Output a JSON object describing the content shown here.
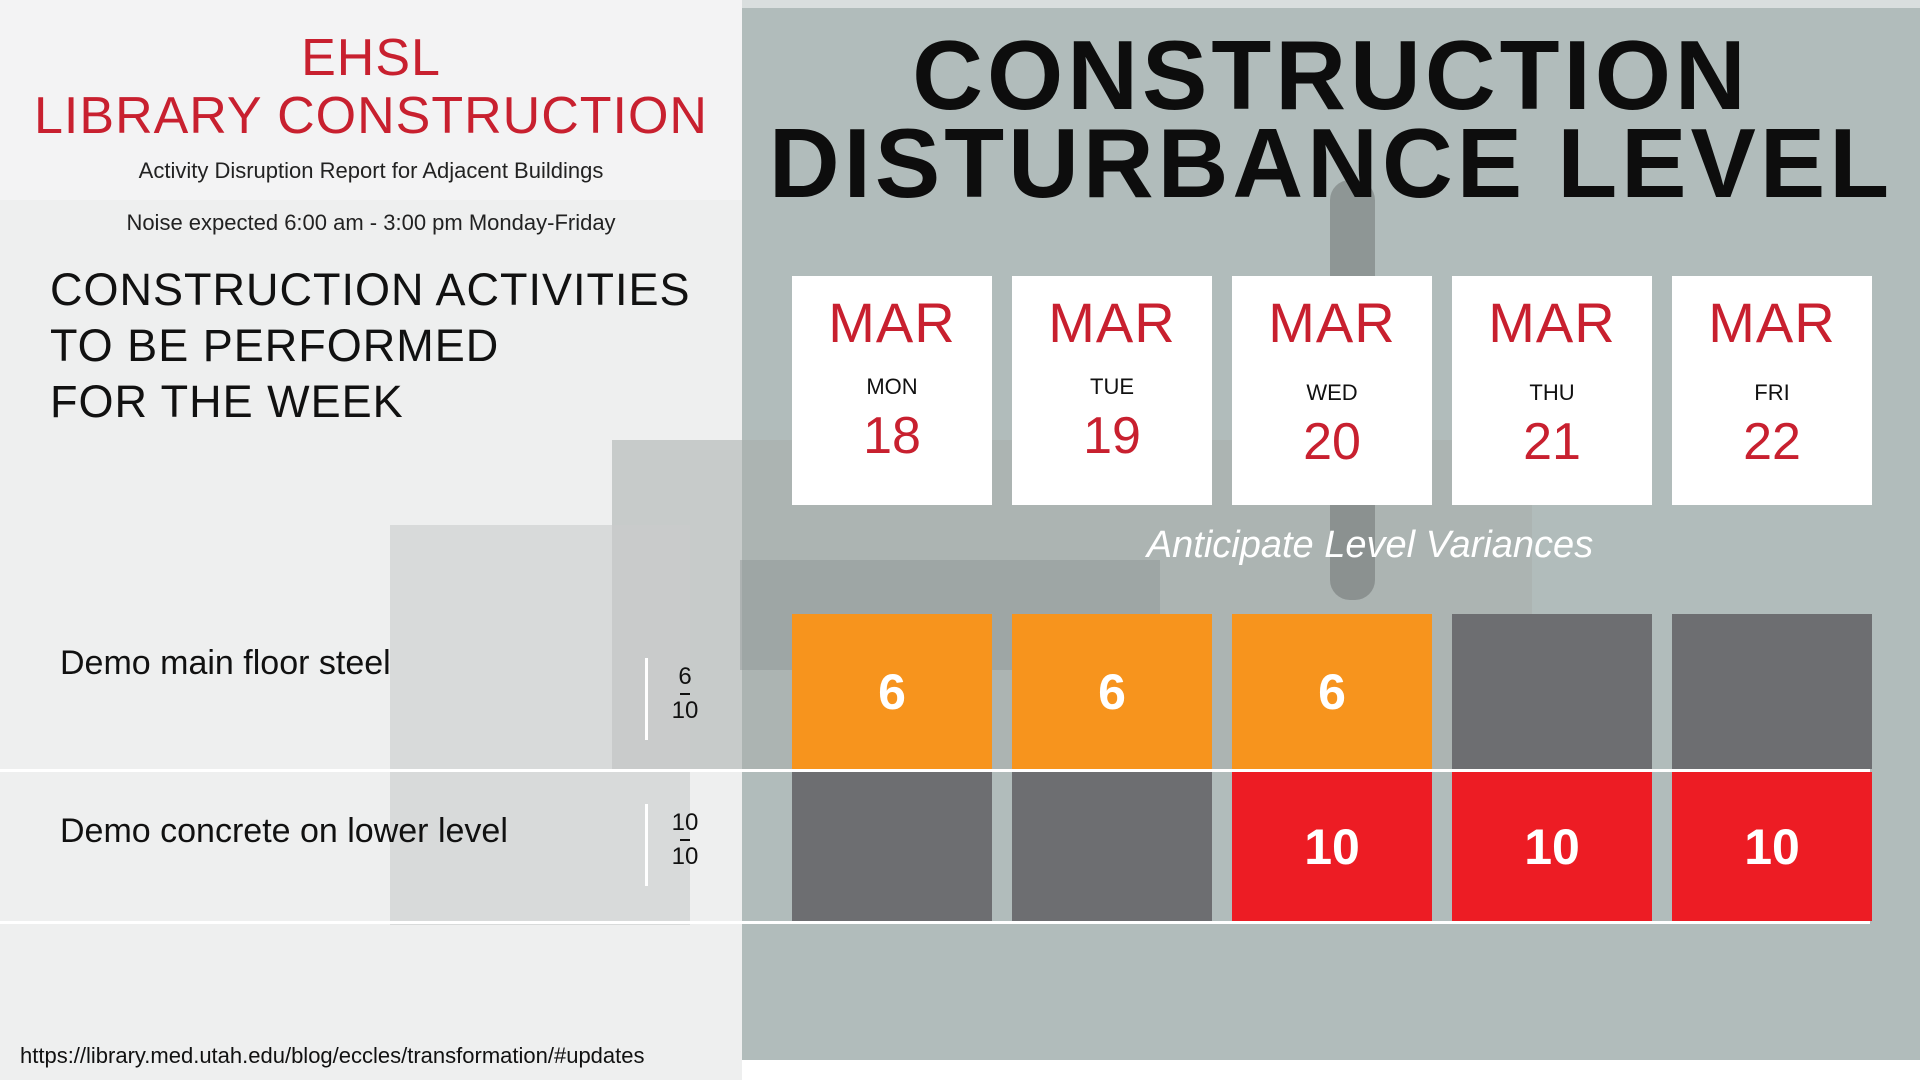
{
  "header": {
    "title_line1": "EHSL",
    "title_line2": "LIBRARY CONSTRUCTION",
    "subtitle": "Activity Disruption Report for Adjacent Buildings",
    "noise": "Noise expected 6:00 am - 3:00 pm Monday-Friday"
  },
  "activities_heading": {
    "line1": "CONSTRUCTION ACTIVITIES",
    "line2": "TO BE PERFORMED",
    "line3": "FOR THE WEEK"
  },
  "main_title": {
    "line1": "CONSTRUCTION",
    "line2": "DISTURBANCE LEVEL"
  },
  "days": [
    {
      "month": "MAR",
      "name": "MON",
      "num": "18"
    },
    {
      "month": "MAR",
      "name": "TUE",
      "num": "19"
    },
    {
      "month": "MAR",
      "name": "WED",
      "num": "20"
    },
    {
      "month": "MAR",
      "name": "THU",
      "num": "21"
    },
    {
      "month": "MAR",
      "name": "FRI",
      "num": "22"
    }
  ],
  "variance_note": "Anticipate Level Variances",
  "activities": [
    {
      "label": "Demo main floor steel",
      "level": "6",
      "max": "10",
      "cells": [
        {
          "value": "6",
          "status": "orange"
        },
        {
          "value": "6",
          "status": "orange"
        },
        {
          "value": "6",
          "status": "orange"
        },
        {
          "value": "",
          "status": "gray"
        },
        {
          "value": "",
          "status": "gray"
        }
      ]
    },
    {
      "label": "Demo concrete on lower level",
      "level": "10",
      "max": "10",
      "cells": [
        {
          "value": "",
          "status": "gray"
        },
        {
          "value": "",
          "status": "gray"
        },
        {
          "value": "10",
          "status": "red"
        },
        {
          "value": "10",
          "status": "red"
        },
        {
          "value": "10",
          "status": "red"
        }
      ]
    }
  ],
  "colors": {
    "accent_red": "#c8202f",
    "orange": "#f7941d",
    "red": "#ed1c24",
    "gray": "#6d6e71"
  },
  "url": "https://library.med.utah.edu/blog/eccles/transformation/#updates"
}
